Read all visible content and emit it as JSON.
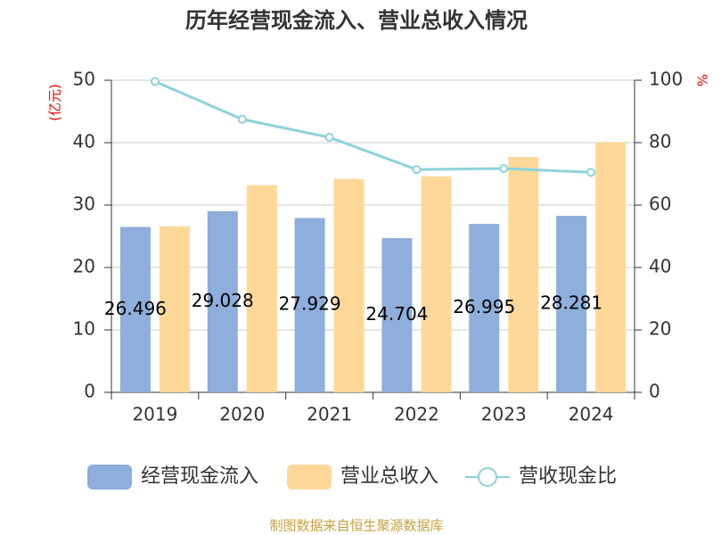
{
  "chart_data": {
    "type": "bar-line",
    "title": "历年经营现金流入、营业总收入情况",
    "y_label": "(亿元)",
    "y2_label": "%",
    "categories": [
      "2019",
      "2020",
      "2021",
      "2022",
      "2023",
      "2024"
    ],
    "series": [
      {
        "name": "经营现金流入",
        "type": "bar",
        "color": "#8eaedb",
        "values": [
          26.496,
          29.028,
          27.929,
          24.704,
          26.995,
          28.281
        ],
        "show_labels": true
      },
      {
        "name": "营业总收入",
        "type": "bar",
        "color": "#ffd899",
        "values": [
          26.6,
          33.2,
          34.2,
          34.6,
          37.7,
          40.1
        ]
      },
      {
        "name": "营收现金比",
        "type": "line",
        "axis": "y2",
        "color": "#8dd3d9",
        "values": [
          99.6,
          87.5,
          81.7,
          71.4,
          71.7,
          70.5
        ]
      }
    ],
    "ylim": [
      0,
      50
    ],
    "yticks": [
      0,
      10,
      20,
      30,
      40,
      50
    ],
    "y2lim": [
      0,
      100
    ],
    "y2ticks": [
      0,
      20,
      40,
      60,
      80,
      100
    ],
    "grid": true,
    "legend": "bottom",
    "source": "制图数据来自恒生聚源数据库"
  }
}
